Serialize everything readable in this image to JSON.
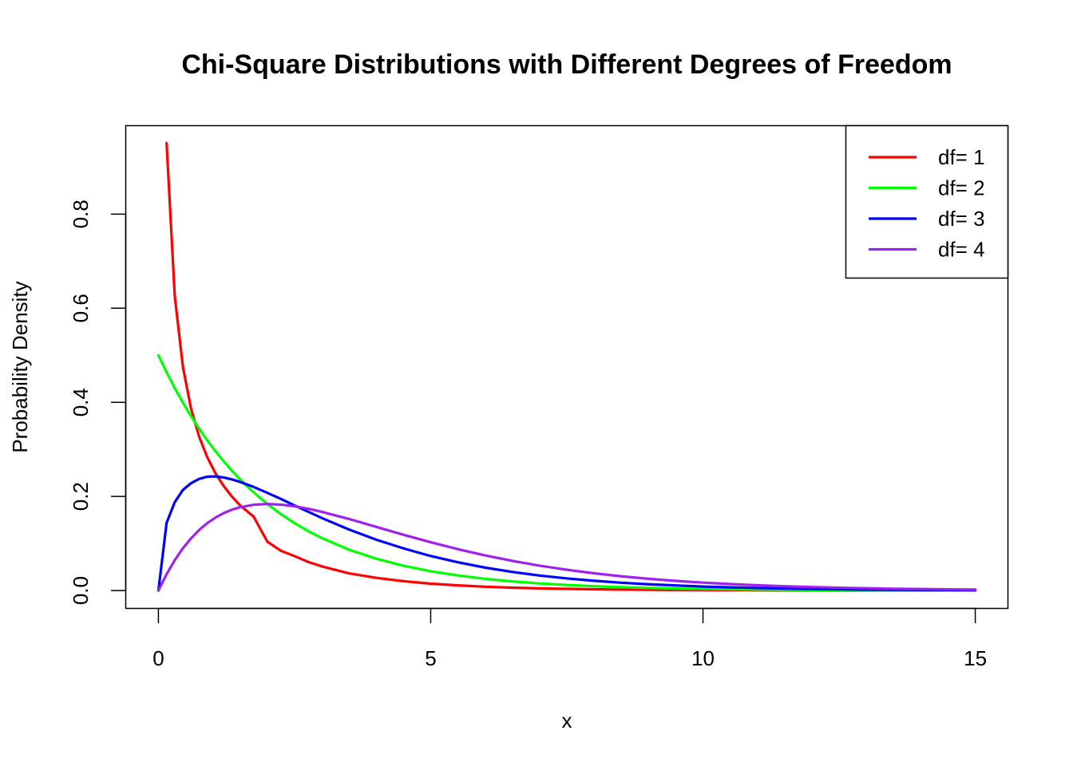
{
  "chart_data": {
    "type": "line",
    "title": "Chi-Square Distributions with Different Degrees of Freedom",
    "xlabel": "x",
    "ylabel": "Probability Density",
    "xlim": [
      -0.6,
      15.6
    ],
    "ylim": [
      -0.038,
      0.988
    ],
    "x_ticks": [
      0,
      5,
      10,
      15
    ],
    "x_tick_labels": [
      "0",
      "5",
      "10",
      "15"
    ],
    "y_ticks": [
      0.0,
      0.2,
      0.4,
      0.6,
      0.8
    ],
    "y_tick_labels": [
      "0.0",
      "0.2",
      "0.4",
      "0.6",
      "0.8"
    ],
    "grid": false,
    "legend": {
      "placement": "top-right",
      "entries": [
        "df= 1",
        "df= 2",
        "df= 3",
        "df= 4"
      ]
    },
    "x": [
      0.0,
      0.15,
      0.3,
      0.45,
      0.6,
      0.75,
      0.9,
      1.05,
      1.2,
      1.35,
      1.5,
      1.75,
      2.0,
      2.25,
      2.5,
      2.75,
      3.0,
      3.5,
      4.0,
      4.5,
      5.0,
      5.5,
      6.0,
      6.5,
      7.0,
      7.5,
      8.0,
      8.5,
      9.0,
      9.5,
      10.0,
      10.5,
      11.0,
      11.5,
      12.0,
      12.5,
      13.0,
      13.5,
      14.0,
      14.5,
      15.0
    ],
    "series": [
      {
        "name": "df= 1",
        "color": "#ff0000",
        "values": [
          null,
          0.9508,
          0.626,
          0.4752,
          0.3863,
          0.3263,
          0.2825,
          0.2488,
          0.2219,
          0.1997,
          0.1811,
          0.1568,
          0.1038,
          0.0845,
          0.0732,
          0.0608,
          0.0514,
          0.0365,
          0.027,
          0.0199,
          0.0146,
          0.011,
          0.0081,
          0.0061,
          0.0046,
          0.0035,
          0.0027,
          0.002,
          0.0015,
          0.0012,
          0.0009,
          0.0007,
          0.0005,
          0.0004,
          0.0003,
          0.0002,
          0.0002,
          0.0001,
          0.0001,
          0.0001,
          0.0001
        ]
      },
      {
        "name": "df= 2",
        "color": "#00ff00",
        "values": [
          0.5,
          0.4639,
          0.4304,
          0.3994,
          0.3704,
          0.3437,
          0.3188,
          0.2958,
          0.2744,
          0.2546,
          0.2362,
          0.2084,
          0.1839,
          0.1623,
          0.1433,
          0.1264,
          0.1116,
          0.0869,
          0.0677,
          0.0527,
          0.041,
          0.032,
          0.0249,
          0.0194,
          0.0151,
          0.0118,
          0.0092,
          0.0071,
          0.0056,
          0.0043,
          0.0034,
          0.0026,
          0.002,
          0.0016,
          0.0012,
          0.001,
          0.0008,
          0.0006,
          0.0005,
          0.0004,
          0.0003
        ]
      },
      {
        "name": "df= 3",
        "color": "#0000ff",
        "values": [
          0.0,
          0.1438,
          0.1878,
          0.2138,
          0.2282,
          0.2374,
          0.242,
          0.2426,
          0.2403,
          0.2362,
          0.2308,
          0.2201,
          0.2076,
          0.1947,
          0.1809,
          0.1675,
          0.1542,
          0.1297,
          0.108,
          0.0896,
          0.0733,
          0.06,
          0.0487,
          0.0395,
          0.0319,
          0.0257,
          0.0207,
          0.0166,
          0.0133,
          0.0107,
          0.0085,
          0.0068,
          0.0054,
          0.0043,
          0.0034,
          0.0027,
          0.0021,
          0.0017,
          0.0014,
          0.0011,
          0.0008
        ]
      },
      {
        "name": "df= 4",
        "color": "#a020f0",
        "values": [
          0.0,
          0.0348,
          0.0646,
          0.0899,
          0.1111,
          0.1289,
          0.1435,
          0.1553,
          0.1647,
          0.1719,
          0.1771,
          0.1824,
          0.1839,
          0.1826,
          0.1791,
          0.1738,
          0.1673,
          0.1521,
          0.1353,
          0.1185,
          0.1026,
          0.0879,
          0.0747,
          0.063,
          0.0528,
          0.0441,
          0.0366,
          0.0303,
          0.025,
          0.0205,
          0.0168,
          0.0137,
          0.0112,
          0.0091,
          0.0074,
          0.006,
          0.0049,
          0.0039,
          0.0032,
          0.0026,
          0.0021
        ]
      }
    ]
  }
}
